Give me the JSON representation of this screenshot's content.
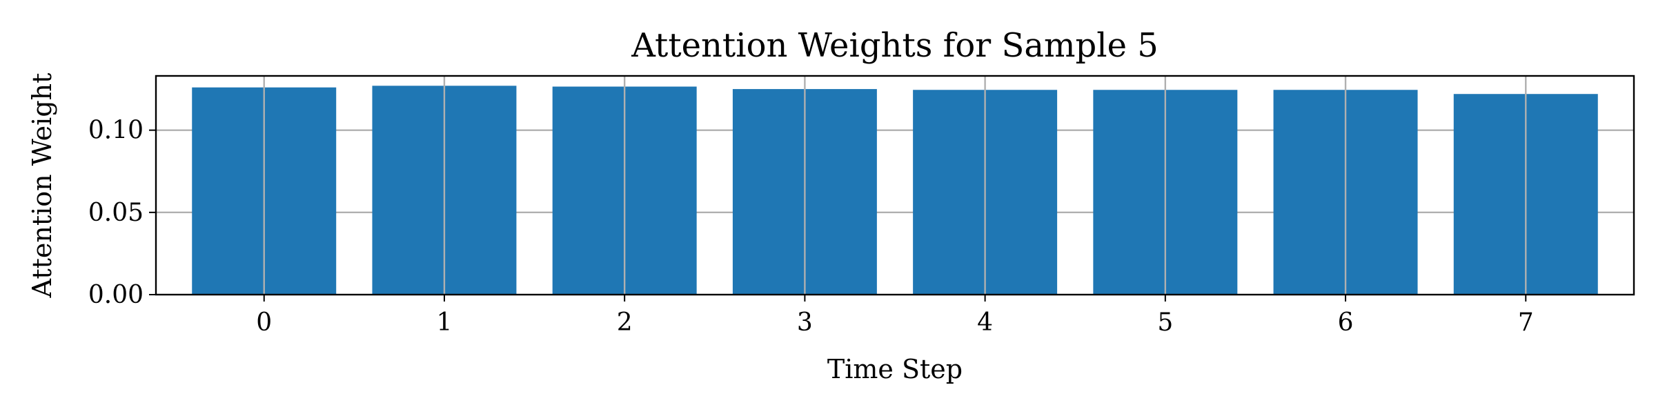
{
  "chart_data": {
    "type": "bar",
    "title": "Attention Weights for Sample 5",
    "xlabel": "Time Step",
    "ylabel": "Attention Weight",
    "categories": [
      "0",
      "1",
      "2",
      "3",
      "4",
      "5",
      "6",
      "7"
    ],
    "values": [
      0.126,
      0.127,
      0.1265,
      0.125,
      0.1245,
      0.1245,
      0.1245,
      0.122
    ],
    "ylim": [
      0,
      0.133
    ],
    "yticks": [
      0.0,
      0.05,
      0.1
    ],
    "ytick_labels": [
      "0.00",
      "0.05",
      "0.10"
    ],
    "grid": true,
    "bar_color": "#1f77b4"
  }
}
